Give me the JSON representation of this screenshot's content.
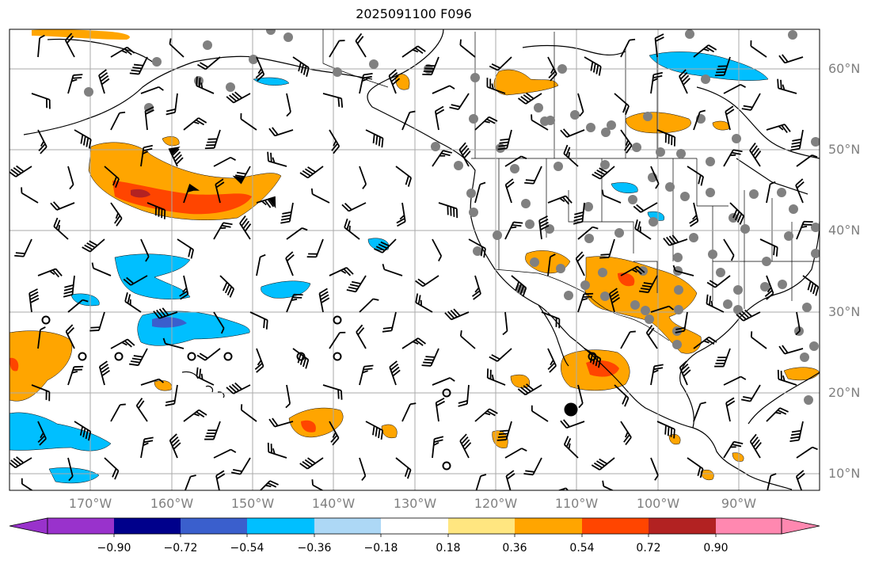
{
  "map": {
    "title": "2025091100 F096",
    "region": "Northeast Pacific / North America",
    "lat_labels": [
      "60°N",
      "50°N",
      "40°N",
      "30°N",
      "20°N",
      "10°N"
    ],
    "lon_labels": [
      "170°W",
      "160°W",
      "150°W",
      "140°W",
      "130°W",
      "120°W",
      "110°W",
      "100°W",
      "90°W"
    ],
    "lat_range": [
      8,
      65
    ],
    "lon_range": [
      -180,
      -80
    ],
    "layers": [
      "shaded anomaly field",
      "coastlines",
      "state/province borders",
      "wind barbs",
      "station dots",
      "storm center marker"
    ]
  },
  "colorbar": {
    "labels": [
      "−0.90",
      "−0.72",
      "−0.54",
      "−0.36",
      "−0.18",
      "0.18",
      "0.36",
      "0.54",
      "0.72",
      "0.90"
    ],
    "colors": [
      "#9932cc",
      "#00008b",
      "#3a5fcd",
      "#00bfff",
      "#add8f6",
      "#ffffff",
      "#ffe680",
      "#ffa500",
      "#ff4500",
      "#b22222",
      "#ff88b0"
    ],
    "extend": "both"
  }
}
